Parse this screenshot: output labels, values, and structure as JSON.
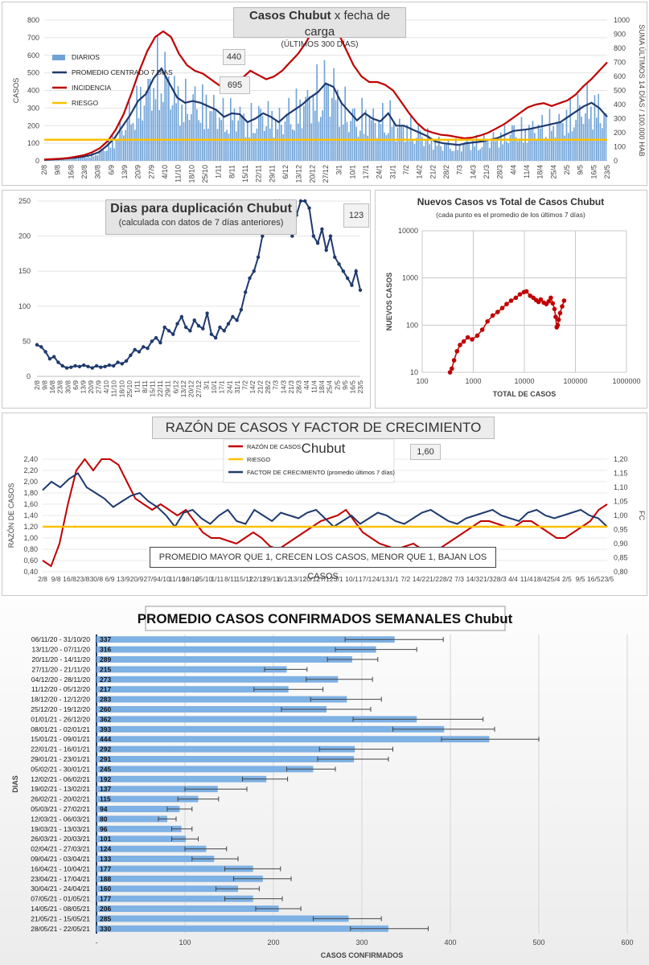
{
  "chart_data": [
    {
      "type": "bar",
      "title": "Casos Chubut",
      "title_suffix": "x fecha de carga",
      "subtitle": "(ÚLTIMOS 300 DÍAS)",
      "ylabel": "CASOS",
      "y2label": "SUMA ÚLTIMOS 14 DÍAS / 100.000 HAB",
      "ylim": [
        0,
        800
      ],
      "y2lim": [
        0,
        1000
      ],
      "yticks": [
        "0",
        "100",
        "200",
        "300",
        "400",
        "500",
        "600",
        "700",
        "800"
      ],
      "y2ticks": [
        "0",
        "100",
        "200",
        "300",
        "400",
        "500",
        "600",
        "700",
        "800",
        "900",
        "1000"
      ],
      "x_tick_labels": [
        "2/8",
        "9/8",
        "16/8",
        "23/8",
        "30/8",
        "6/9",
        "13/9",
        "20/9",
        "27/9",
        "4/10",
        "11/10",
        "18/10",
        "25/10",
        "1/11",
        "8/11",
        "15/11",
        "22/11",
        "29/11",
        "6/12",
        "13/12",
        "20/12",
        "27/12",
        "3/1",
        "10/1",
        "17/1",
        "24/1",
        "31/1",
        "7/2",
        "14/2",
        "21/2",
        "28/2",
        "7/3",
        "14/3",
        "21/3",
        "28/3",
        "4/4",
        "11/4",
        "18/4",
        "25/4",
        "2/5",
        "9/5",
        "16/5",
        "23/5"
      ],
      "legend": [
        "DIARIOS",
        "PROMEDIO CENTRADO 7 DÍAS",
        "INCIDENCIA",
        "RIESGO"
      ],
      "callouts": [
        "440",
        "695"
      ],
      "riesgo": 120,
      "series": [
        {
          "name": "PROMEDIO CENTRADO 7 DÍAS",
          "values": [
            5,
            8,
            10,
            14,
            18,
            24,
            33,
            50,
            85,
            130,
            195,
            260,
            340,
            380,
            470,
            525,
            440,
            360,
            330,
            340,
            330,
            310,
            290,
            250,
            270,
            265,
            220,
            240,
            270,
            250,
            220,
            260,
            290,
            320,
            360,
            390,
            440,
            420,
            330,
            280,
            230,
            270,
            240,
            225,
            270,
            200,
            200,
            180,
            160,
            140,
            110,
            100,
            95,
            90,
            100,
            105,
            110,
            120,
            130,
            150,
            170,
            175,
            180,
            190,
            200,
            210,
            220,
            250,
            280,
            310,
            330,
            300,
            250
          ]
        },
        {
          "name": "INCIDENCIA",
          "values": [
            10,
            12,
            15,
            20,
            30,
            40,
            60,
            90,
            140,
            220,
            330,
            480,
            640,
            780,
            880,
            920,
            880,
            760,
            680,
            640,
            620,
            580,
            540,
            510,
            530,
            590,
            640,
            610,
            580,
            600,
            640,
            700,
            760,
            840,
            940,
            1000,
            980,
            920,
            800,
            680,
            600,
            560,
            560,
            540,
            500,
            420,
            340,
            270,
            220,
            200,
            185,
            180,
            170,
            160,
            165,
            180,
            200,
            230,
            260,
            300,
            340,
            380,
            400,
            410,
            390,
            410,
            430,
            470,
            530,
            580,
            640,
            700
          ]
        },
        {
          "name": "RIESGO",
          "values": [
            120,
            120
          ]
        }
      ]
    },
    {
      "type": "line",
      "title": "Dias para duplicación Chubut",
      "subtitle": "(calculada con datos de 7 días anteriores)",
      "ylim": [
        0,
        250
      ],
      "yticks": [
        "0",
        "50",
        "100",
        "150",
        "200",
        "250"
      ],
      "x_tick_labels": [
        "2/8",
        "9/8",
        "16/8",
        "23/8",
        "30/8",
        "6/9",
        "13/9",
        "20/9",
        "27/9",
        "4/10",
        "11/10",
        "18/10",
        "25/10",
        "1/11",
        "8/11",
        "15/11",
        "22/11",
        "29/11",
        "6/12",
        "13/12",
        "20/12",
        "27/12",
        "3/1",
        "10/1",
        "17/1",
        "24/1",
        "31/1",
        "7/2",
        "14/2",
        "21/2",
        "28/2",
        "7/3",
        "14/3",
        "21/3",
        "28/3",
        "4/4",
        "11/4",
        "18/4",
        "25/4",
        "2/5",
        "9/5",
        "16/5",
        "23/5"
      ],
      "callout": "123",
      "series": [
        {
          "name": "",
          "values": [
            45,
            42,
            35,
            25,
            28,
            20,
            15,
            12,
            13,
            15,
            14,
            16,
            14,
            12,
            15,
            13,
            14,
            16,
            15,
            20,
            18,
            22,
            30,
            38,
            35,
            42,
            40,
            50,
            55,
            48,
            70,
            65,
            60,
            75,
            85,
            70,
            65,
            80,
            72,
            68,
            90,
            60,
            55,
            70,
            65,
            75,
            85,
            80,
            95,
            120,
            140,
            150,
            170,
            200,
            220,
            240,
            260,
            255,
            240,
            220,
            200,
            230,
            250,
            260,
            240,
            200,
            190,
            210,
            180,
            200,
            170,
            160,
            150,
            140,
            130,
            150,
            123
          ]
        }
      ]
    },
    {
      "type": "scatter",
      "title": "Nuevos Casos vs Total de Casos Chubut",
      "subtitle": "(cada punto es el promedio de los últimos 7 días)",
      "xlabel": "TOTAL DE CASOS",
      "ylabel": "NUEVOS CASOS",
      "xscale": "log",
      "yscale": "log",
      "xlim": [
        100,
        1000000
      ],
      "ylim": [
        10,
        10000
      ],
      "xticks": [
        "100",
        "1000",
        "10000",
        "100000",
        "1000000"
      ],
      "yticks": [
        "10",
        "100",
        "1000",
        "10000"
      ],
      "x": [
        350,
        380,
        420,
        480,
        550,
        650,
        780,
        950,
        1200,
        1500,
        1900,
        2400,
        3000,
        3700,
        4500,
        5500,
        6800,
        8200,
        9800,
        11000,
        13000,
        15000,
        17000,
        19000,
        21000,
        24000,
        27000,
        30000,
        33000,
        36000,
        39000,
        41000,
        43000,
        45000,
        47000,
        50000,
        55000,
        60000
      ],
      "y": [
        10,
        12,
        18,
        28,
        38,
        45,
        55,
        50,
        60,
        80,
        120,
        160,
        190,
        230,
        280,
        330,
        380,
        450,
        500,
        520,
        420,
        380,
        340,
        310,
        350,
        300,
        280,
        320,
        380,
        290,
        220,
        150,
        90,
        100,
        130,
        180,
        250,
        330
      ]
    },
    {
      "type": "line",
      "title": "RAZÓN DE CASOS Y FACTOR DE CRECIMIENTO Chubut",
      "ylabel": "RAZÓN DE CASOS",
      "y2label": "FC",
      "ylim": [
        0.4,
        2.4
      ],
      "y2lim": [
        0.8,
        1.2
      ],
      "yticks": [
        "0,40",
        "0,60",
        "0,80",
        "1,00",
        "1,20",
        "1,40",
        "1,60",
        "1,80",
        "2,00",
        "2,20",
        "2,40"
      ],
      "y2ticks": [
        "0,80",
        "0,85",
        "0,90",
        "0,95",
        "1,00",
        "1,05",
        "1,10",
        "1,15",
        "1,20"
      ],
      "x_tick_labels": [
        "2/8",
        "9/8",
        "16/8",
        "23/8",
        "30/8",
        "6/9",
        "13/9",
        "20/9",
        "27/9",
        "4/10",
        "11/10",
        "18/10",
        "25/10",
        "1/11",
        "8/11",
        "15/11",
        "22/11",
        "29/11",
        "6/12",
        "13/12",
        "20/12",
        "27/12",
        "3/1",
        "10/1",
        "17/1",
        "24/1",
        "31/1",
        "7/2",
        "14/2",
        "21/2",
        "28/2",
        "7/3",
        "14/3",
        "21/3",
        "28/3",
        "4/4",
        "11/4",
        "18/4",
        "25/4",
        "2/5",
        "9/5",
        "16/5",
        "23/5"
      ],
      "legend": [
        "RAZÓN DE CASOS",
        "RIESGO",
        "FACTOR DE CRECIMIENTO (promedio últimos 7 días)"
      ],
      "callout": "1,60",
      "note": "PROMEDIO MAYOR QUE 1, CRECEN LOS CASOS, MENOR QUE 1, BAJAN LOS CASOS",
      "riesgo": 1.2,
      "series": [
        {
          "name": "RAZÓN DE CASOS",
          "values": [
            0.6,
            0.5,
            0.9,
            1.6,
            2.2,
            2.4,
            2.2,
            2.4,
            2.5,
            2.3,
            2.0,
            1.7,
            1.6,
            1.5,
            1.6,
            1.5,
            1.4,
            1.5,
            1.3,
            1.1,
            1.0,
            1.0,
            0.95,
            0.9,
            1.0,
            1.1,
            1.0,
            0.85,
            0.8,
            0.9,
            1.0,
            1.1,
            1.2,
            1.3,
            1.35,
            1.4,
            1.5,
            1.3,
            1.1,
            1.0,
            0.9,
            0.85,
            0.8,
            0.85,
            0.9,
            0.8,
            0.75,
            0.8,
            0.9,
            1.0,
            1.1,
            1.2,
            1.3,
            1.3,
            1.25,
            1.2,
            1.2,
            1.3,
            1.3,
            1.2,
            1.1,
            1.0,
            1.0,
            1.1,
            1.2,
            1.3,
            1.5,
            1.6
          ]
        },
        {
          "name": "FACTOR DE CRECIMIENTO (promedio últimos 7 días)",
          "values": [
            1.09,
            1.12,
            1.1,
            1.13,
            1.15,
            1.1,
            1.08,
            1.06,
            1.03,
            1.05,
            1.07,
            1.08,
            1.05,
            1.03,
            1.0,
            0.96,
            1.01,
            1.02,
            0.99,
            0.97,
            1.0,
            1.02,
            0.98,
            0.97,
            1.02,
            1.0,
            0.98,
            1.01,
            1.0,
            0.99,
            1.01,
            1.02,
            0.99,
            0.96,
            0.98,
            1.0,
            0.97,
            0.99,
            1.01,
            1.0,
            0.98,
            0.97,
            0.99,
            1.01,
            1.02,
            1.0,
            0.98,
            0.97,
            0.99,
            1.0,
            1.01,
            1.02,
            1.0,
            0.99,
            0.98,
            1.01,
            1.02,
            1.0,
            0.99,
            1.0,
            1.01,
            1.02,
            1.0,
            0.99,
            0.96
          ]
        }
      ]
    },
    {
      "type": "bar",
      "orientation": "horizontal",
      "title": "PROMEDIO CASOS CONFIRMADOS SEMANALES Chubut",
      "xlabel": "CASOS CONFIRMADOS",
      "ylabel": "DIAS",
      "xlim": [
        0,
        600
      ],
      "xticks": [
        "-",
        "100",
        "200",
        "300",
        "400",
        "500",
        "600"
      ],
      "categories": [
        "06/11/20 - 31/10/20",
        "13/11/20 - 07/11/20",
        "20/11/20 - 14/11/20",
        "27/11/20 - 21/11/20",
        "04/12/20 - 28/11/20",
        "11/12/20 - 05/12/20",
        "18/12/20 - 12/12/20",
        "25/12/20 - 19/12/20",
        "01/01/21 - 26/12/20",
        "08/01/21 - 02/01/21",
        "15/01/21 - 09/01/21",
        "22/01/21 - 16/01/21",
        "29/01/21 - 23/01/21",
        "05/02/21 - 30/01/21",
        "12/02/21 - 06/02/21",
        "19/02/21 - 13/02/21",
        "26/02/21 - 20/02/21",
        "05/03/21 - 27/02/21",
        "12/03/21 - 06/03/21",
        "19/03/21 - 13/03/21",
        "26/03/21 - 20/03/21",
        "02/04/21 - 27/03/21",
        "09/04/21 - 03/04/21",
        "16/04/21 - 10/04/21",
        "23/04/21 - 17/04/21",
        "30/04/21 - 24/04/21",
        "07/05/21 - 01/05/21",
        "14/05/21 - 08/05/21",
        "21/05/21 - 15/05/21",
        "28/05/21 - 22/05/21"
      ],
      "values": [
        337,
        316,
        289,
        215,
        273,
        217,
        283,
        260,
        362,
        393,
        444,
        292,
        291,
        245,
        192,
        137,
        115,
        94,
        80,
        96,
        101,
        124,
        133,
        177,
        188,
        160,
        177,
        206,
        285,
        330
      ],
      "error_low": [
        281,
        270,
        261,
        190,
        237,
        178,
        242,
        209,
        290,
        335,
        390,
        252,
        250,
        215,
        165,
        100,
        92,
        80,
        70,
        85,
        85,
        100,
        108,
        145,
        155,
        135,
        145,
        180,
        245,
        287
      ],
      "error_high": [
        392,
        362,
        318,
        238,
        312,
        256,
        322,
        310,
        437,
        450,
        500,
        335,
        330,
        270,
        216,
        170,
        138,
        108,
        90,
        108,
        115,
        147,
        160,
        208,
        220,
        184,
        210,
        231,
        322,
        375
      ]
    }
  ]
}
